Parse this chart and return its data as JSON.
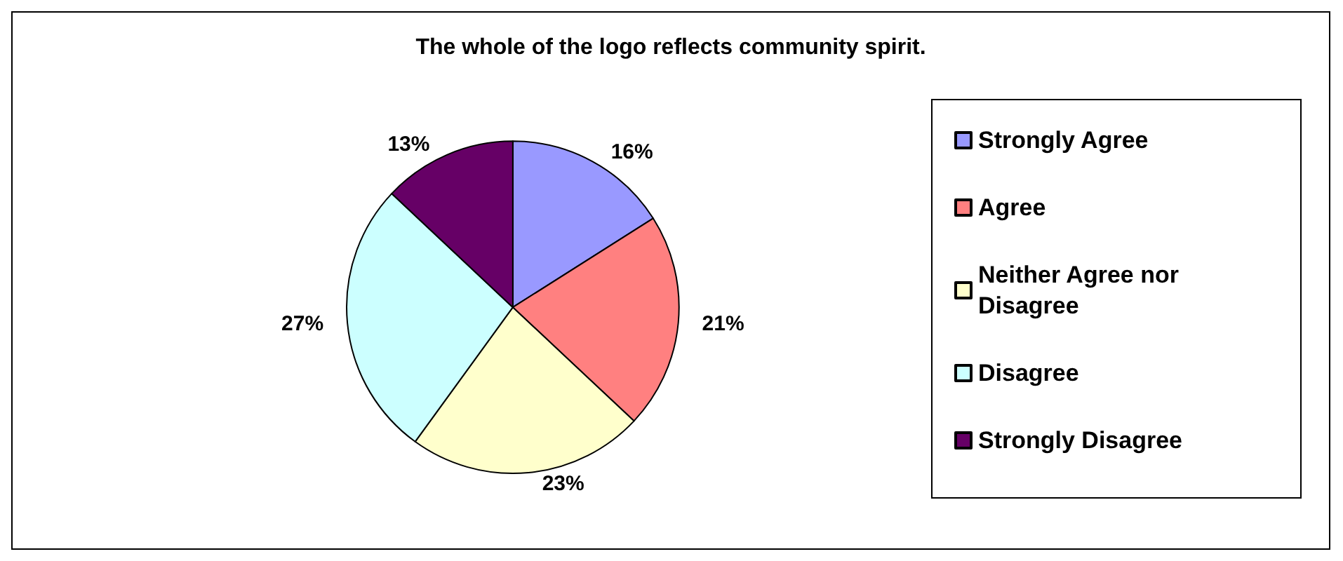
{
  "chart_data": {
    "type": "pie",
    "title": "The whole of the logo reflects community spirit.",
    "categories": [
      "Strongly Agree",
      "Agree",
      "Neither Agree nor Disagree",
      "Disagree",
      "Strongly Disagree"
    ],
    "values": [
      16,
      21,
      23,
      27,
      13
    ],
    "colors": [
      "#9999ff",
      "#ff8080",
      "#ffffcc",
      "#ccffff",
      "#660066"
    ],
    "value_labels": [
      "16%",
      "21%",
      "23%",
      "27%",
      "13%"
    ],
    "legend": "right"
  }
}
